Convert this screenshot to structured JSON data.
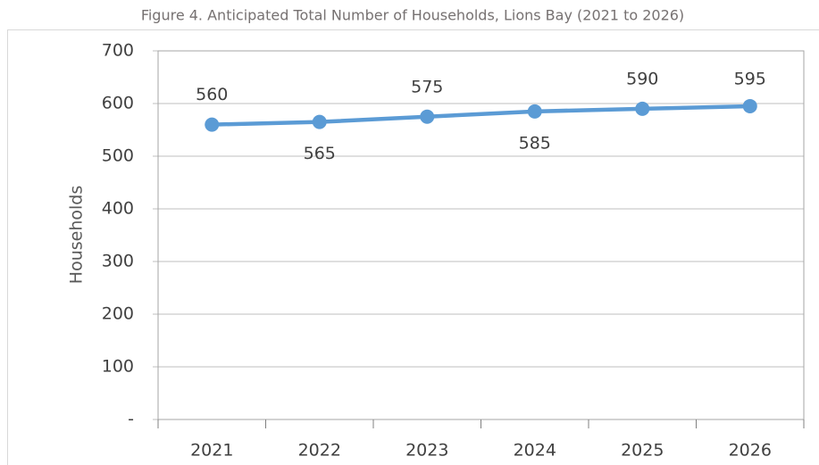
{
  "chart_data": {
    "type": "line",
    "title": "Figure 4. Anticipated Total Number of Households, Lions Bay (2021 to 2026)",
    "y_label": "Households",
    "categories": [
      "2021",
      "2022",
      "2023",
      "2024",
      "2025",
      "2026"
    ],
    "series": [
      {
        "name": "Households",
        "color": "#5b9bd5",
        "values": [
          560,
          565,
          575,
          585,
          590,
          595
        ]
      }
    ],
    "ylim": [
      0,
      700
    ],
    "yticks": [
      {
        "value": 0,
        "label": "-"
      },
      100,
      200,
      300,
      400,
      500,
      600,
      700
    ],
    "grid": true
  }
}
